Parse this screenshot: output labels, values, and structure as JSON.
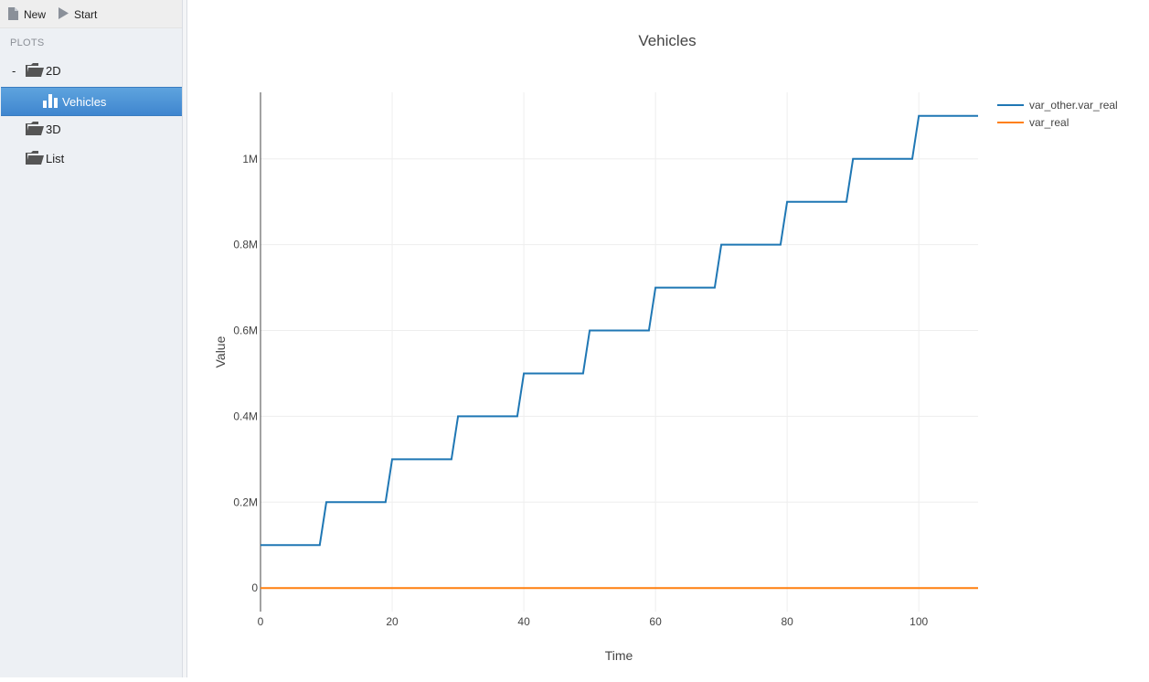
{
  "toolbar": {
    "new_label": "New",
    "start_label": "Start"
  },
  "sidebar": {
    "section_header": "PLOTS",
    "tree": [
      {
        "label": "2D",
        "expanded": true,
        "toggle": "-",
        "icon": "folder-open-icon"
      },
      {
        "label": "Vehicles",
        "selected": true,
        "icon": "bar-chart-icon"
      },
      {
        "label": "3D",
        "icon": "folder-open-icon"
      },
      {
        "label": "List",
        "icon": "folder-open-icon"
      }
    ]
  },
  "colors": {
    "series1": "#1f77b4",
    "series2": "#ff7f0e",
    "selection": "#4a90d9",
    "grid": "#eeeeee"
  },
  "chart_data": {
    "type": "line",
    "title": "Vehicles",
    "xlabel": "Time",
    "ylabel": "Value",
    "xlim": [
      0,
      109
    ],
    "ylim": [
      -55000,
      1155000
    ],
    "x_ticks": [
      0,
      20,
      40,
      60,
      80,
      100
    ],
    "x_tick_labels": [
      "0",
      "20",
      "40",
      "60",
      "80",
      "100"
    ],
    "y_ticks": [
      0,
      200000,
      400000,
      600000,
      800000,
      1000000
    ],
    "y_tick_labels": [
      "0",
      "0.2M",
      "0.4M",
      "0.6M",
      "0.8M",
      "1M"
    ],
    "grid": true,
    "legend_position": "top-right",
    "series": [
      {
        "name": "var_other.var_real",
        "color": "#1f77b4",
        "x": [
          0,
          9,
          10,
          19,
          20,
          29,
          30,
          39,
          40,
          49,
          50,
          59,
          60,
          69,
          70,
          79,
          80,
          89,
          90,
          99,
          100,
          109
        ],
        "y": [
          100000,
          100000,
          200000,
          200000,
          300000,
          300000,
          400000,
          400000,
          500000,
          500000,
          600000,
          600000,
          700000,
          700000,
          800000,
          800000,
          900000,
          900000,
          1000000,
          1000000,
          1100000,
          1100000
        ]
      },
      {
        "name": "var_real",
        "color": "#ff7f0e",
        "x": [
          0,
          109
        ],
        "y": [
          0,
          0
        ]
      }
    ]
  }
}
